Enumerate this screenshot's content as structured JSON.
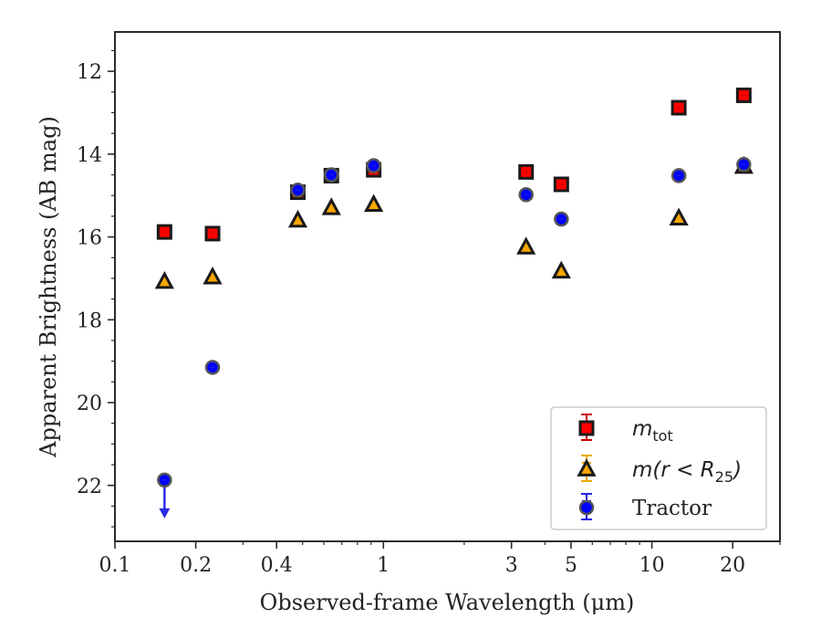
{
  "chart_data": {
    "type": "scatter",
    "xlabel": "Observed-frame Wavelength (μm)",
    "ylabel": "Apparent Brightness (AB mag)",
    "x_scale": "log",
    "xlim": [
      0.1,
      30
    ],
    "ylim": [
      23.35,
      11.05
    ],
    "y_inverted": true,
    "x_ticks": [
      {
        "value": 0.1,
        "label": "0.1"
      },
      {
        "value": 0.2,
        "label": "0.2"
      },
      {
        "value": 0.4,
        "label": "0.4"
      },
      {
        "value": 1,
        "label": "1"
      },
      {
        "value": 3,
        "label": "3"
      },
      {
        "value": 5,
        "label": "5"
      },
      {
        "value": 10,
        "label": "10"
      },
      {
        "value": 20,
        "label": "20"
      }
    ],
    "y_ticks": [
      {
        "value": 12,
        "label": "12"
      },
      {
        "value": 14,
        "label": "14"
      },
      {
        "value": 16,
        "label": "16"
      },
      {
        "value": 18,
        "label": "18"
      },
      {
        "value": 20,
        "label": "20"
      },
      {
        "value": 22,
        "label": "22"
      }
    ],
    "grid": false,
    "legend_position": "bottom-right",
    "series": [
      {
        "name": "m_tot",
        "marker": "square",
        "color": "#ff0000",
        "edge_color": "#1a1a1a",
        "errorbar_color": "#cc0000",
        "x": [
          0.153,
          0.231,
          0.48,
          0.64,
          0.92,
          3.4,
          4.6,
          12.6,
          22.0
        ],
        "y": [
          15.88,
          15.92,
          14.92,
          14.52,
          14.38,
          14.43,
          14.73,
          12.88,
          12.58
        ]
      },
      {
        "name": "m(r < R25)",
        "marker": "triangle",
        "color": "#ffa500",
        "edge_color": "#1a1a1a",
        "errorbar_color": "#e6a800",
        "x": [
          0.153,
          0.231,
          0.48,
          0.64,
          0.92,
          3.4,
          4.6,
          12.6,
          22.0
        ],
        "y": [
          17.08,
          16.97,
          15.6,
          15.3,
          15.22,
          16.25,
          16.83,
          15.55,
          14.3
        ]
      },
      {
        "name": "Tractor",
        "marker": "circle",
        "color": "#0000ff",
        "edge_color": "#555555",
        "errorbar_color": "#2222dd",
        "x": [
          0.153,
          0.231,
          0.48,
          0.64,
          0.92,
          3.4,
          4.6,
          12.6,
          22.0
        ],
        "y": [
          21.87,
          19.15,
          14.87,
          14.5,
          14.28,
          14.98,
          15.57,
          14.52,
          14.25
        ],
        "upper_limits": [
          true,
          false,
          false,
          false,
          false,
          false,
          false,
          false,
          false
        ]
      }
    ]
  },
  "legend": {
    "entries": [
      {
        "sym": "m",
        "sub": "tot",
        "text": ""
      },
      {
        "sym": "m(r < R",
        "sub": "25",
        "tail": ")",
        "text": ""
      },
      {
        "sym": "",
        "sub": "",
        "text": "Tractor"
      }
    ]
  }
}
